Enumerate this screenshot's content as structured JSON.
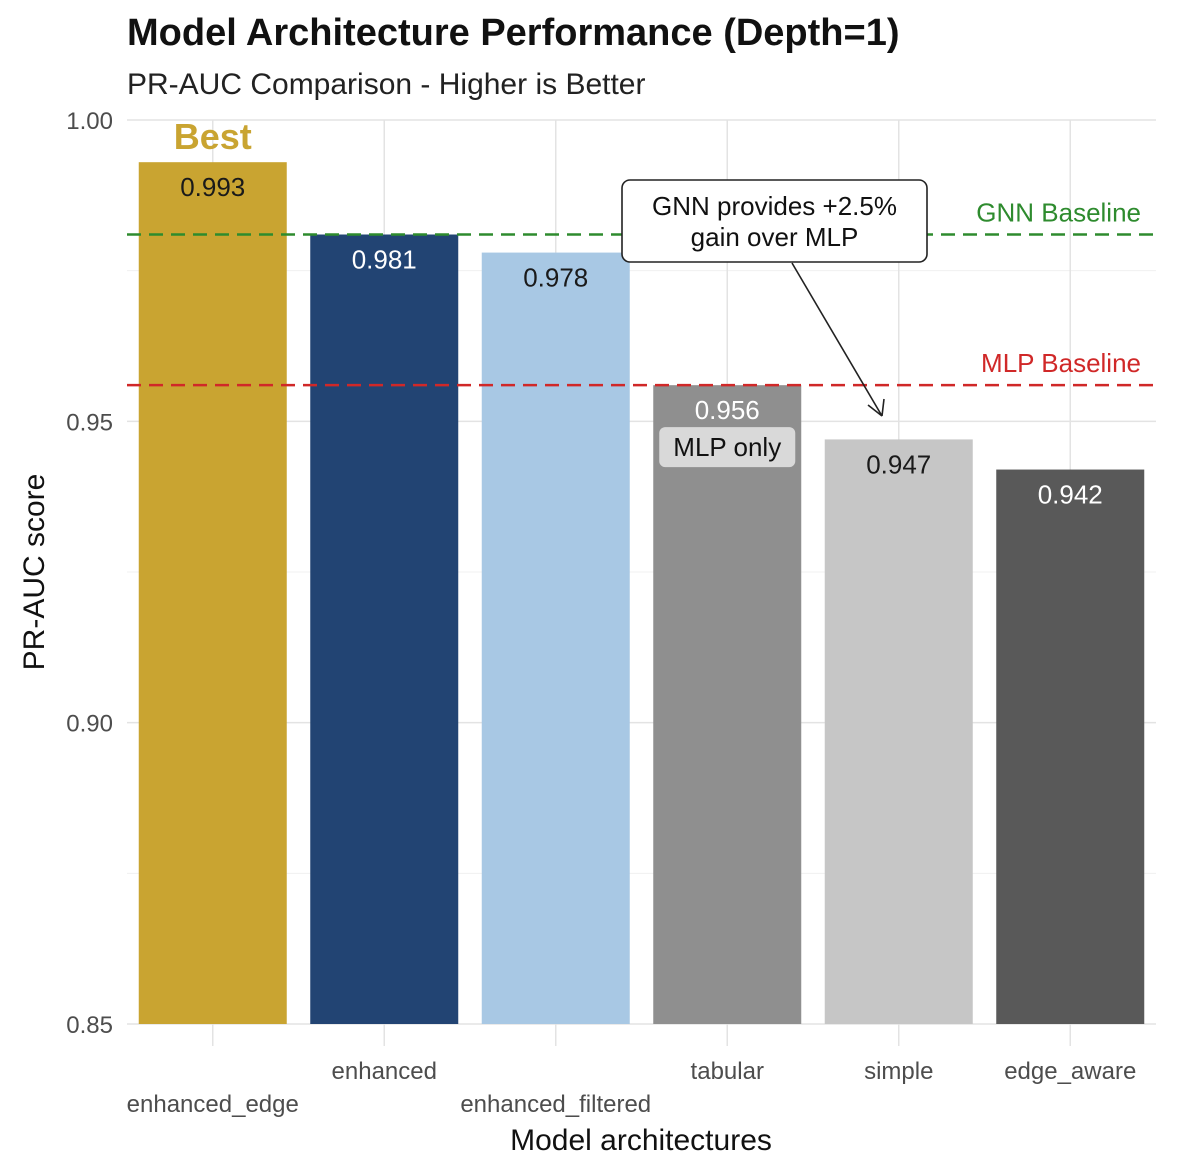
{
  "chart_data": {
    "type": "bar",
    "title": "Model Architecture Performance (Depth=1)",
    "subtitle": "PR-AUC Comparison - Higher is Better",
    "xlabel": "Model architectures",
    "ylabel": "PR-AUC score",
    "categories": [
      "enhanced_edge",
      "enhanced",
      "enhanced_filtered",
      "tabular",
      "simple",
      "edge_aware"
    ],
    "values": [
      0.993,
      0.981,
      0.978,
      0.956,
      0.947,
      0.942
    ],
    "value_labels": [
      "0.993",
      "0.981",
      "0.978",
      "0.956",
      "0.947",
      "0.942"
    ],
    "bar_colors": [
      "#C9A431",
      "#224473",
      "#A8C8E4",
      "#8F8F8F",
      "#C6C6C6",
      "#595959"
    ],
    "label_colors": [
      "#1a1a1a",
      "#ffffff",
      "#1a1a1a",
      "#ffffff",
      "#1a1a1a",
      "#ffffff"
    ],
    "ylim": [
      0.85,
      1.0
    ],
    "yticks": [
      0.85,
      0.9,
      0.95,
      1.0
    ],
    "ytick_labels": [
      "0.85",
      "0.90",
      "0.95",
      "1.00"
    ],
    "grid": true,
    "reference_lines": [
      {
        "name": "GNN Baseline",
        "value": 0.981,
        "color": "#2E8B2E",
        "style": "dashed"
      },
      {
        "name": "MLP Baseline",
        "value": 0.956,
        "color": "#D02828",
        "style": "dashed"
      }
    ],
    "annotations": {
      "best": {
        "text": "Best",
        "category": "enhanced_edge",
        "color": "#C9A431"
      },
      "mlp_only": {
        "text": "MLP only",
        "category": "tabular"
      },
      "callout": {
        "lines": [
          "GNN provides +2.5%",
          "gain over MLP"
        ]
      }
    }
  }
}
